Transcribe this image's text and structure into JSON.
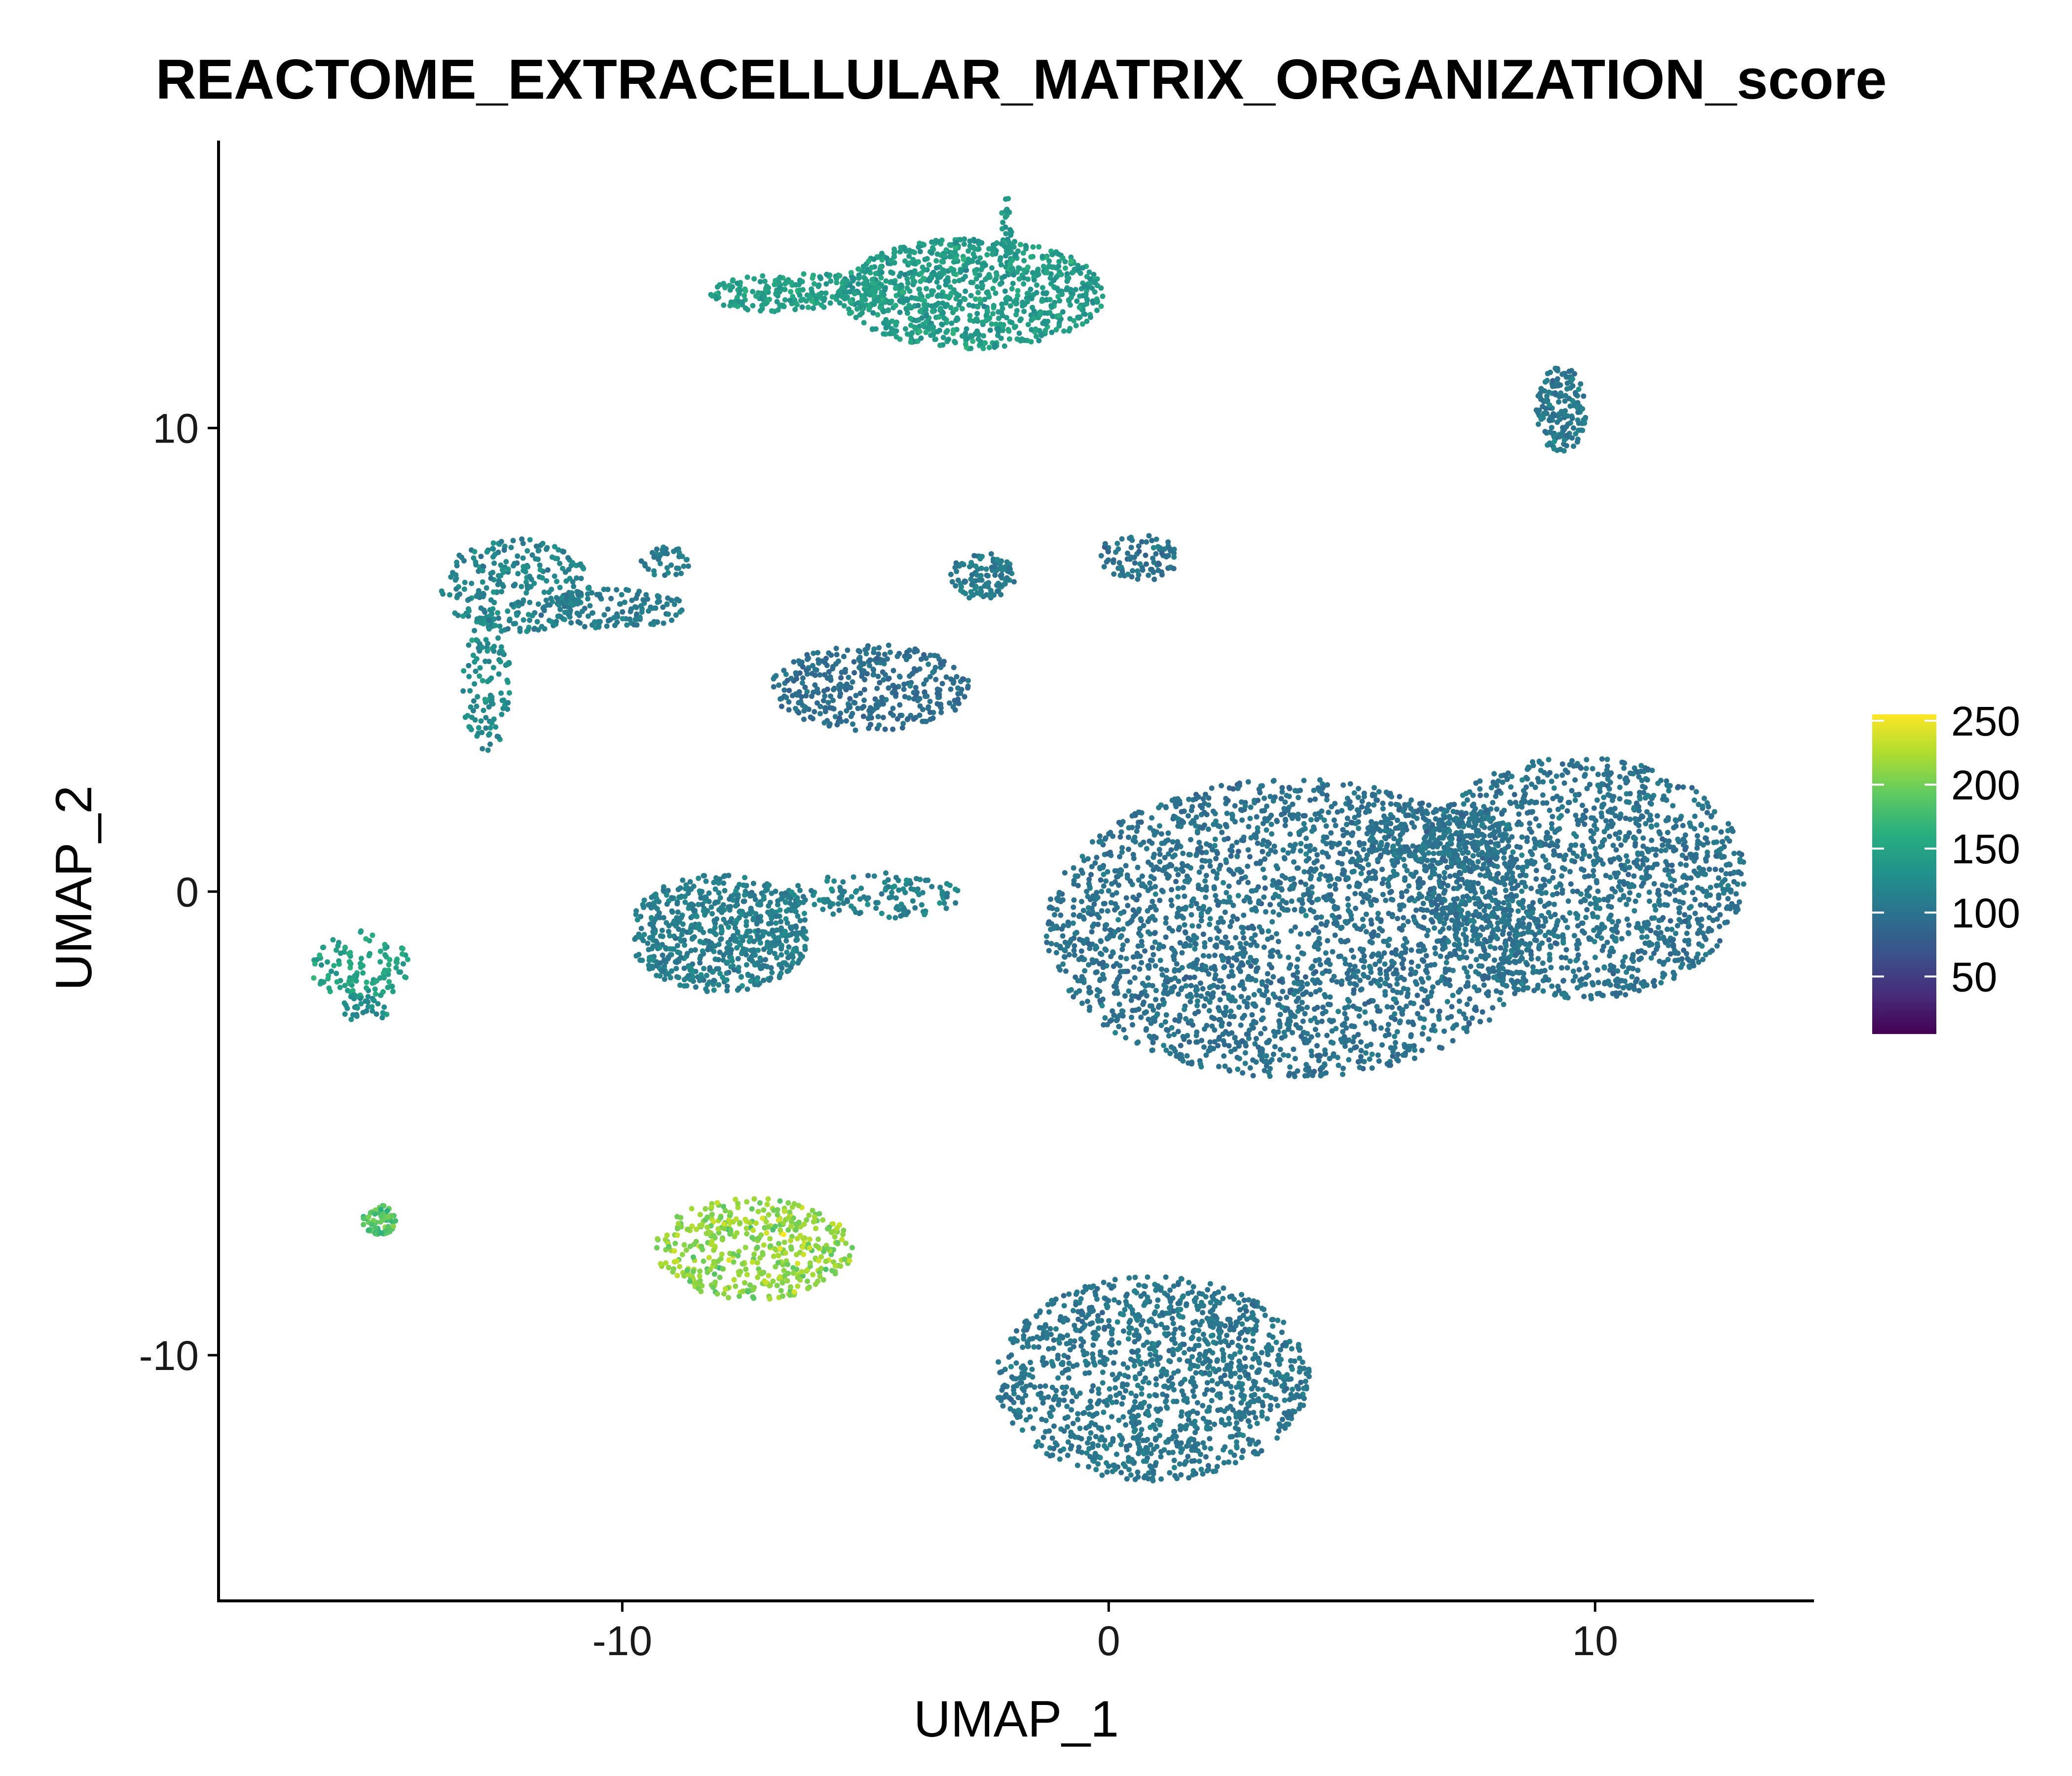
{
  "chart_data": {
    "type": "scatter",
    "title": "REACTOME_EXTRACELLULAR_MATRIX_ORGANIZATION_score",
    "xlabel": "UMAP_1",
    "ylabel": "UMAP_2",
    "xlim": [
      -18.3,
      14.5
    ],
    "ylim": [
      -15.3,
      16.2
    ],
    "x_ticks": [
      -10,
      0,
      10
    ],
    "x_tick_labels": [
      "-10",
      "0",
      "10"
    ],
    "y_ticks": [
      -10,
      0,
      10
    ],
    "y_tick_labels": [
      "-10",
      "0",
      "10"
    ],
    "grid": false,
    "legend": {
      "type": "colorbar",
      "placement": "right",
      "colormap": "viridis",
      "range": [
        5,
        255
      ],
      "ticks": [
        50,
        100,
        150,
        200,
        250
      ],
      "tick_labels": [
        "50",
        "100",
        "150",
        "200",
        "250"
      ]
    },
    "clusters": [
      {
        "cx": -2.8,
        "cy": 12.9,
        "sx": 1.6,
        "sy": 0.7,
        "score": 142,
        "spread": 10,
        "count": 900
      },
      {
        "cx": -6.2,
        "cy": 12.9,
        "sx": 1.3,
        "sy": 0.25,
        "score": 145,
        "spread": 9,
        "count": 260
      },
      {
        "cx": -2.1,
        "cy": 14.3,
        "sx": 0.07,
        "sy": 0.4,
        "score": 140,
        "spread": 8,
        "count": 25
      },
      {
        "cx": 9.3,
        "cy": 10.4,
        "sx": 0.3,
        "sy": 0.55,
        "score": 105,
        "spread": 8,
        "count": 170
      },
      {
        "cx": -12.2,
        "cy": 6.6,
        "sx": 0.9,
        "sy": 0.6,
        "score": 118,
        "spread": 10,
        "count": 260
      },
      {
        "cx": -12.8,
        "cy": 4.5,
        "sx": 0.3,
        "sy": 0.9,
        "score": 125,
        "spread": 10,
        "count": 120
      },
      {
        "cx": -10.2,
        "cy": 6.1,
        "sx": 0.9,
        "sy": 0.25,
        "score": 108,
        "spread": 8,
        "count": 150
      },
      {
        "cx": -9.1,
        "cy": 7.1,
        "sx": 0.3,
        "sy": 0.2,
        "score": 110,
        "spread": 8,
        "count": 40
      },
      {
        "cx": -2.6,
        "cy": 6.8,
        "sx": 0.4,
        "sy": 0.3,
        "score": 108,
        "spread": 8,
        "count": 110
      },
      {
        "cx": 0.6,
        "cy": 7.2,
        "sx": 0.5,
        "sy": 0.3,
        "score": 100,
        "spread": 8,
        "count": 90
      },
      {
        "cx": -4.9,
        "cy": 4.4,
        "sx": 1.2,
        "sy": 0.55,
        "score": 95,
        "spread": 7,
        "count": 380
      },
      {
        "cx": -8.0,
        "cy": -0.9,
        "sx": 1.1,
        "sy": 0.75,
        "score": 112,
        "spread": 8,
        "count": 650
      },
      {
        "cx": -4.9,
        "cy": -0.1,
        "sx": 1.1,
        "sy": 0.3,
        "score": 115,
        "spread": 8,
        "count": 150
      },
      {
        "cx": 3.8,
        "cy": -0.8,
        "sx": 3.0,
        "sy": 1.9,
        "score": 98,
        "spread": 7,
        "count": 2600
      },
      {
        "cx": 9.7,
        "cy": 0.3,
        "sx": 2.0,
        "sy": 1.55,
        "score": 100,
        "spread": 7,
        "count": 1500
      },
      {
        "cx": 6.8,
        "cy": 1.2,
        "sx": 0.9,
        "sy": 0.35,
        "score": 102,
        "spread": 7,
        "count": 200
      },
      {
        "cx": 0.9,
        "cy": -10.5,
        "sx": 1.9,
        "sy": 1.3,
        "score": 103,
        "spread": 7,
        "count": 1300
      },
      {
        "cx": -7.3,
        "cy": -7.7,
        "sx": 1.2,
        "sy": 0.65,
        "score": 212,
        "spread": 14,
        "count": 450
      },
      {
        "cx": -15.0,
        "cy": -7.1,
        "sx": 0.2,
        "sy": 0.2,
        "score": 185,
        "spread": 12,
        "count": 80
      },
      {
        "cx": -15.4,
        "cy": -1.6,
        "sx": 0.6,
        "sy": 0.45,
        "score": 150,
        "spread": 10,
        "count": 120
      },
      {
        "cx": -15.3,
        "cy": -2.5,
        "sx": 0.3,
        "sy": 0.2,
        "score": 125,
        "spread": 8,
        "count": 35
      }
    ]
  }
}
